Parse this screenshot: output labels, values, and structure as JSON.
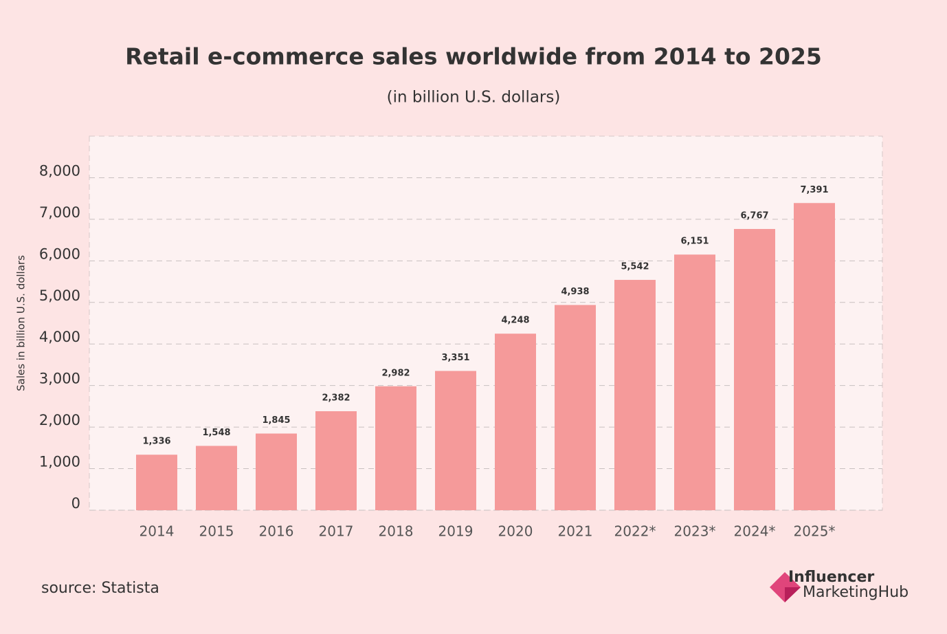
{
  "chart_data": {
    "type": "bar",
    "title": "Retail e-commerce sales worldwide from 2014 to 2025",
    "subtitle": "(in billion U.S. dollars)",
    "y_label": "Sales in billion U.S. dollars",
    "categories": [
      "2014",
      "2015",
      "2016",
      "2017",
      "2018",
      "2019",
      "2020",
      "2021",
      "2022*",
      "2023*",
      "2024*",
      "2025*"
    ],
    "values": [
      1336,
      1548,
      1845,
      2382,
      2982,
      3351,
      4248,
      4938,
      5542,
      6151,
      6767,
      7391
    ],
    "value_labels": [
      "1,336",
      "1,548",
      "1,845",
      "2,382",
      "2,982",
      "3,351",
      "4,248",
      "4,938",
      "5,542",
      "6,151",
      "6,767",
      "7,391"
    ],
    "color": "#f59a9a",
    "ylim": [
      0,
      9000
    ],
    "yticks": [
      0,
      {
        "value": 1000,
        "label": "1,000"
      },
      {
        "value": 2000,
        "label": "2,000"
      },
      {
        "value": 3000,
        "label": "3,000"
      },
      {
        "value": 4000,
        "label": "4,000"
      },
      {
        "value": 5000,
        "label": "5,000"
      },
      {
        "value": 6000,
        "label": "6,000"
      },
      {
        "value": 7000,
        "label": "7,000"
      },
      {
        "value": 8000,
        "label": "8,000"
      }
    ],
    "grid": true,
    "source": "source: Statista",
    "logo": [
      "Influencer",
      "MarketingHub"
    ]
  }
}
